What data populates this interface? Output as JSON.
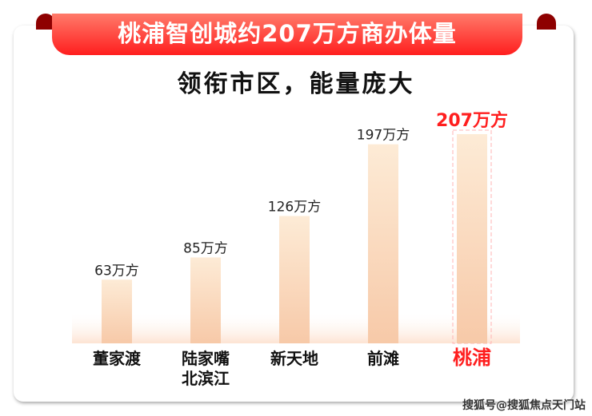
{
  "header": {
    "title": "桃浦智创城约207万方商办体量",
    "subtitle": "领衔市区，能量庞大"
  },
  "colors": {
    "accent": "#ff1e1e",
    "bar_top": "#fdebd6",
    "bar_bottom": "#f7c9a8",
    "label": "#111111"
  },
  "watermark": "搜狐号@搜狐焦点天门站",
  "chart_data": {
    "type": "bar",
    "categories": [
      "董家渡",
      "陆家嘴\n北滨江",
      "新天地",
      "前滩",
      "桃浦"
    ],
    "values": [
      63,
      85,
      126,
      197,
      207
    ],
    "unit": "万方",
    "data_labels": [
      "63万方",
      "85万方",
      "126万方",
      "197万方",
      "207万方"
    ],
    "highlight": "桃浦",
    "grid": false
  }
}
